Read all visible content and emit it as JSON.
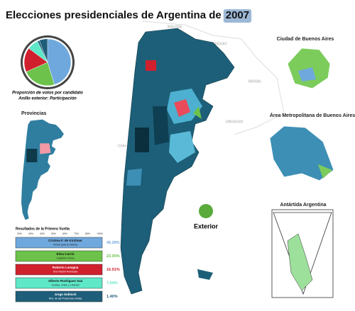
{
  "title": "Elecciones presidenciales de Argentina de",
  "title_year": "2007",
  "pie_caption": [
    "Proporción de votos por candidato",
    "Anillo exterior: Participación"
  ],
  "countries": [
    "BOLIVIA",
    "PARAGUAY",
    "BRASIL",
    "URUGUAY",
    "Chile"
  ],
  "insets": {
    "provinces": "Provincias",
    "caba": "Ciudad de Buenos Aires",
    "amba": "Área Metropolitana de Buenos Aires",
    "antarctica": "Antártida Argentina",
    "exterior": "Exterior"
  },
  "results": {
    "title": "Resultados de la Primera Vuelta",
    "scale": [
      "20%",
      "30%",
      "40%",
      "50%",
      "60%",
      "70%",
      "80%",
      "+90%"
    ],
    "candidates": [
      {
        "name": "Cristina F. de Kirchner",
        "party": "Frente para la Victoria",
        "color": "#6fa8dc",
        "value": 45.28,
        "value_label": "45.28%"
      },
      {
        "name": "Elisa Carrió",
        "party": "Coalición Cívica",
        "color": "#6cc24a",
        "value": 23.05,
        "value_label": "23.05%"
      },
      {
        "name": "Roberto Lavagna",
        "party": "Una Nación Avanzada",
        "color": "#d0202e",
        "value": 16.91,
        "value_label": "16.91%"
      },
      {
        "name": "Alberto Rodríguez Saá",
        "party": "Justicia, Unión y Libertad",
        "color": "#5ee8c8",
        "value": 7.64,
        "value_label": "7.64%"
      },
      {
        "name": "Jorge Sobisch",
        "party": "Mov. de las Provincias Unidas",
        "color": "#1f5e7a",
        "value": 1.4,
        "value_label": "1.40%"
      }
    ]
  }
}
